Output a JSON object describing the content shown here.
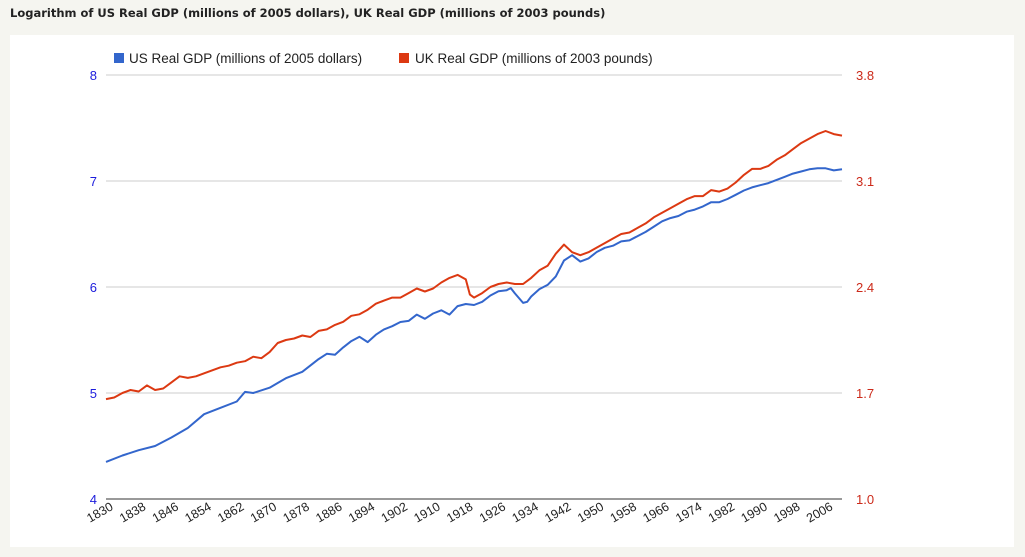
{
  "title": "Logarithm of US Real GDP (millions of 2005 dollars), UK Real GDP (millions of 2003 pounds)",
  "colors": {
    "us": "#3366cc",
    "uk": "#dc3912",
    "left_axis": "#1c1cdc",
    "right_axis": "#cc2a1a",
    "grid": "#cccccc",
    "baseline": "#333333"
  },
  "chart_data": {
    "type": "line",
    "title": "Logarithm of US Real GDP (millions of 2005 dollars), UK Real GDP (millions of 2003 pounds)",
    "x_range": [
      1830,
      2010
    ],
    "x_tick_labels": [
      "1830",
      "1838",
      "1846",
      "1854",
      "1862",
      "1870",
      "1878",
      "1886",
      "1894",
      "1902",
      "1910",
      "1918",
      "1926",
      "1934",
      "1942",
      "1950",
      "1958",
      "1966",
      "1974",
      "1982",
      "1990",
      "1998",
      "2006"
    ],
    "y_left": {
      "ticks": [
        "4",
        "5",
        "6",
        "7",
        "8"
      ],
      "range": [
        4,
        8
      ]
    },
    "y_right": {
      "ticks": [
        "1.0",
        "1.7",
        "2.4",
        "3.1",
        "3.8"
      ],
      "range": [
        1.0,
        3.8
      ]
    },
    "legend_position": "top-left",
    "grid": true,
    "series": [
      {
        "name": "US Real GDP (millions of 2005 dollars)",
        "axis": "left",
        "points": [
          [
            1830,
            4.35
          ],
          [
            1834,
            4.41
          ],
          [
            1838,
            4.46
          ],
          [
            1842,
            4.5
          ],
          [
            1846,
            4.58
          ],
          [
            1850,
            4.67
          ],
          [
            1854,
            4.8
          ],
          [
            1858,
            4.86
          ],
          [
            1862,
            4.92
          ],
          [
            1864,
            5.01
          ],
          [
            1866,
            5.0
          ],
          [
            1870,
            5.05
          ],
          [
            1874,
            5.14
          ],
          [
            1878,
            5.2
          ],
          [
            1882,
            5.32
          ],
          [
            1884,
            5.37
          ],
          [
            1886,
            5.36
          ],
          [
            1888,
            5.43
          ],
          [
            1890,
            5.49
          ],
          [
            1892,
            5.53
          ],
          [
            1894,
            5.48
          ],
          [
            1896,
            5.55
          ],
          [
            1898,
            5.6
          ],
          [
            1900,
            5.63
          ],
          [
            1902,
            5.67
          ],
          [
            1904,
            5.68
          ],
          [
            1906,
            5.74
          ],
          [
            1908,
            5.7
          ],
          [
            1910,
            5.75
          ],
          [
            1912,
            5.78
          ],
          [
            1914,
            5.74
          ],
          [
            1916,
            5.82
          ],
          [
            1918,
            5.84
          ],
          [
            1920,
            5.83
          ],
          [
            1922,
            5.86
          ],
          [
            1924,
            5.92
          ],
          [
            1926,
            5.96
          ],
          [
            1928,
            5.97
          ],
          [
            1929,
            5.99
          ],
          [
            1930,
            5.94
          ],
          [
            1932,
            5.85
          ],
          [
            1933,
            5.86
          ],
          [
            1934,
            5.91
          ],
          [
            1936,
            5.98
          ],
          [
            1938,
            6.02
          ],
          [
            1940,
            6.1
          ],
          [
            1942,
            6.25
          ],
          [
            1944,
            6.3
          ],
          [
            1946,
            6.24
          ],
          [
            1948,
            6.27
          ],
          [
            1950,
            6.33
          ],
          [
            1952,
            6.37
          ],
          [
            1954,
            6.39
          ],
          [
            1956,
            6.43
          ],
          [
            1958,
            6.44
          ],
          [
            1960,
            6.48
          ],
          [
            1962,
            6.52
          ],
          [
            1964,
            6.57
          ],
          [
            1966,
            6.62
          ],
          [
            1968,
            6.65
          ],
          [
            1970,
            6.67
          ],
          [
            1972,
            6.71
          ],
          [
            1974,
            6.73
          ],
          [
            1976,
            6.76
          ],
          [
            1978,
            6.8
          ],
          [
            1980,
            6.8
          ],
          [
            1982,
            6.83
          ],
          [
            1984,
            6.87
          ],
          [
            1986,
            6.91
          ],
          [
            1988,
            6.94
          ],
          [
            1990,
            6.96
          ],
          [
            1992,
            6.98
          ],
          [
            1994,
            7.01
          ],
          [
            1996,
            7.04
          ],
          [
            1998,
            7.07
          ],
          [
            2000,
            7.09
          ],
          [
            2002,
            7.11
          ],
          [
            2004,
            7.12
          ],
          [
            2006,
            7.12
          ],
          [
            2008,
            7.1
          ],
          [
            2010,
            7.11
          ]
        ]
      },
      {
        "name": "UK Real GDP (millions of 2003 pounds)",
        "axis": "right",
        "points": [
          [
            1830,
            1.66
          ],
          [
            1832,
            1.67
          ],
          [
            1834,
            1.7
          ],
          [
            1836,
            1.72
          ],
          [
            1838,
            1.71
          ],
          [
            1840,
            1.75
          ],
          [
            1842,
            1.72
          ],
          [
            1844,
            1.73
          ],
          [
            1846,
            1.77
          ],
          [
            1848,
            1.81
          ],
          [
            1850,
            1.8
          ],
          [
            1852,
            1.81
          ],
          [
            1854,
            1.83
          ],
          [
            1856,
            1.85
          ],
          [
            1858,
            1.87
          ],
          [
            1860,
            1.88
          ],
          [
            1862,
            1.9
          ],
          [
            1864,
            1.91
          ],
          [
            1866,
            1.94
          ],
          [
            1868,
            1.93
          ],
          [
            1870,
            1.97
          ],
          [
            1872,
            2.03
          ],
          [
            1874,
            2.05
          ],
          [
            1876,
            2.06
          ],
          [
            1878,
            2.08
          ],
          [
            1880,
            2.07
          ],
          [
            1882,
            2.11
          ],
          [
            1884,
            2.12
          ],
          [
            1886,
            2.15
          ],
          [
            1888,
            2.17
          ],
          [
            1890,
            2.21
          ],
          [
            1892,
            2.22
          ],
          [
            1894,
            2.25
          ],
          [
            1896,
            2.29
          ],
          [
            1898,
            2.31
          ],
          [
            1900,
            2.33
          ],
          [
            1902,
            2.33
          ],
          [
            1904,
            2.36
          ],
          [
            1906,
            2.39
          ],
          [
            1908,
            2.37
          ],
          [
            1910,
            2.39
          ],
          [
            1912,
            2.43
          ],
          [
            1914,
            2.46
          ],
          [
            1916,
            2.48
          ],
          [
            1918,
            2.45
          ],
          [
            1919,
            2.35
          ],
          [
            1920,
            2.33
          ],
          [
            1922,
            2.36
          ],
          [
            1924,
            2.4
          ],
          [
            1926,
            2.42
          ],
          [
            1928,
            2.43
          ],
          [
            1930,
            2.42
          ],
          [
            1932,
            2.42
          ],
          [
            1934,
            2.46
          ],
          [
            1936,
            2.51
          ],
          [
            1938,
            2.54
          ],
          [
            1940,
            2.62
          ],
          [
            1942,
            2.68
          ],
          [
            1944,
            2.63
          ],
          [
            1946,
            2.61
          ],
          [
            1948,
            2.63
          ],
          [
            1950,
            2.66
          ],
          [
            1952,
            2.69
          ],
          [
            1954,
            2.72
          ],
          [
            1956,
            2.75
          ],
          [
            1958,
            2.76
          ],
          [
            1960,
            2.79
          ],
          [
            1962,
            2.82
          ],
          [
            1964,
            2.86
          ],
          [
            1966,
            2.89
          ],
          [
            1968,
            2.92
          ],
          [
            1970,
            2.95
          ],
          [
            1972,
            2.98
          ],
          [
            1974,
            3.0
          ],
          [
            1976,
            3.0
          ],
          [
            1978,
            3.04
          ],
          [
            1980,
            3.03
          ],
          [
            1982,
            3.05
          ],
          [
            1984,
            3.09
          ],
          [
            1986,
            3.14
          ],
          [
            1988,
            3.18
          ],
          [
            1990,
            3.18
          ],
          [
            1992,
            3.2
          ],
          [
            1994,
            3.24
          ],
          [
            1996,
            3.27
          ],
          [
            1998,
            3.31
          ],
          [
            2000,
            3.35
          ],
          [
            2002,
            3.38
          ],
          [
            2004,
            3.41
          ],
          [
            2006,
            3.43
          ],
          [
            2008,
            3.41
          ],
          [
            2010,
            3.4
          ]
        ]
      }
    ]
  }
}
